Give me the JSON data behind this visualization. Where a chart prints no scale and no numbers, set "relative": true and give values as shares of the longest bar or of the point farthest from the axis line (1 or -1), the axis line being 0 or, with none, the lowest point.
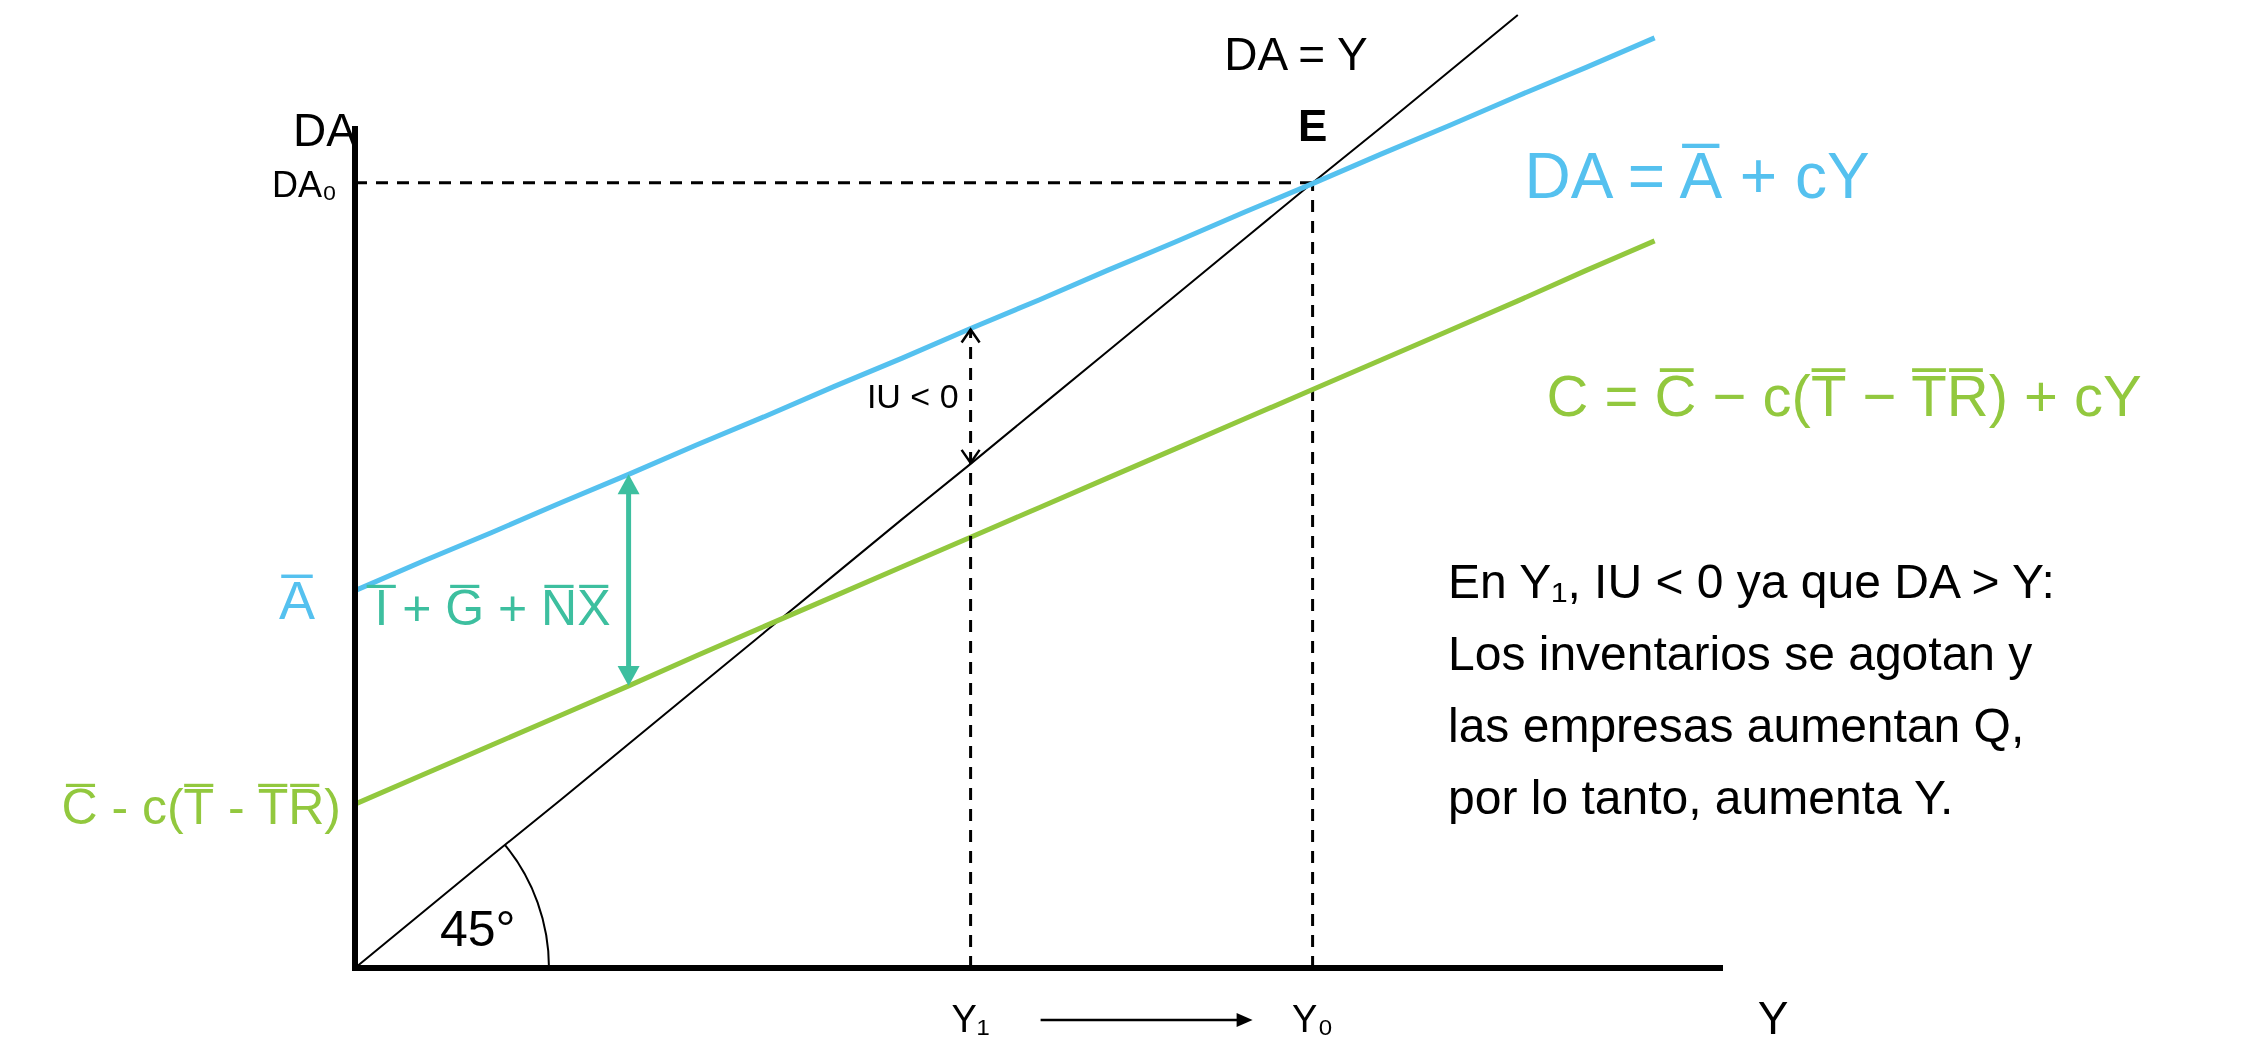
{
  "chart_data": {
    "type": "line",
    "relative": true,
    "xlabel": "Y",
    "ylabel": "DA",
    "categories": [
      null,
      null,
      null,
      null,
      null,
      null,
      null,
      null,
      null,
      "Y₁",
      null,
      null,
      null,
      null,
      "Y₀",
      null,
      null,
      null,
      null,
      null,
      null
    ],
    "tick_labels": "x",
    "marker": "none",
    "series": [
      {
        "name": "DA = Y",
        "color": "#000000",
        "values": [
          0,
          0.059,
          0.118,
          0.176,
          0.235,
          0.294,
          0.353,
          0.412,
          0.471,
          0.529,
          0.588,
          0.647,
          0.706,
          0.765,
          0.824,
          0.882,
          0.941,
          1,
          null,
          null,
          null
        ]
      },
      {
        "name": "DA = A̅ + cY",
        "color": "#55c1ef",
        "values": [
          0.396,
          0.427,
          0.457,
          0.488,
          0.518,
          0.549,
          0.579,
          0.61,
          0.64,
          0.671,
          0.701,
          0.732,
          0.762,
          0.793,
          0.823,
          0.854,
          0.884,
          0.915,
          0.945,
          0.976,
          null
        ]
      },
      {
        "name": "C = C̅ − c(T̅ − T̅R̅) + cY",
        "color": "#92c83e",
        "values": [
          0.172,
          0.203,
          0.234,
          0.265,
          0.296,
          0.328,
          0.359,
          0.39,
          0.421,
          0.452,
          0.483,
          0.514,
          0.545,
          0.576,
          0.607,
          0.638,
          0.669,
          0.7,
          0.732,
          0.763,
          null
        ]
      }
    ],
    "ref_lines": [
      {
        "axis": "y",
        "value": 0.824,
        "label": "DA₀",
        "line_style": "dashed",
        "color": "#000000"
      },
      {
        "axis": "x",
        "value": "Y₀",
        "line_style": "dashed",
        "color": "#000000"
      }
    ],
    "annotations": [
      {
        "text": "E",
        "x": "Y₀",
        "y": 0.824
      },
      "A̅",
      "C̅ - c(T̅ - T̅R̅)",
      "IU < 0",
      "I̅ + G̅ + N̅X̅",
      "45°",
      "En Y₁, IU < 0 ya que DA > Y:\nLos inventarios se agotan y\nlas empresas aumentan Q,\npor lo tanto, aumenta Y."
    ]
  }
}
